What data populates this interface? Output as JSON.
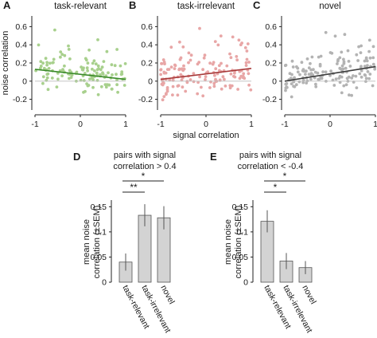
{
  "chart_data": [
    {
      "panel": "A",
      "type": "scatter",
      "title": "task-relevant",
      "xlabel": "",
      "ylabel": "noise correlation",
      "xlim": [
        -1,
        1
      ],
      "ylim": [
        -0.3,
        0.7
      ],
      "xticks": [
        "-1",
        "0",
        "1"
      ],
      "yticks": [
        "-0.2",
        "0",
        "0.2",
        "0.4",
        "0.6"
      ],
      "point_color": "#a8d08d",
      "line_color": "#3b8a2a",
      "fit_line": {
        "x": [
          -1,
          1
        ],
        "y": [
          0.13,
          0.02
        ]
      },
      "seed": 11,
      "n_points": 130,
      "spread": 0.15
    },
    {
      "panel": "B",
      "type": "scatter",
      "title": "task-irrelevant",
      "xlabel": "signal correlation",
      "ylabel": "",
      "xlim": [
        -1,
        1
      ],
      "ylim": [
        -0.3,
        0.7
      ],
      "xticks": [
        "-1",
        "0",
        "1"
      ],
      "yticks": [
        "-0.2",
        "0",
        "0.2",
        "0.4",
        "0.6"
      ],
      "point_color": "#e8a6a6",
      "line_color": "#a83a3a",
      "fit_line": {
        "x": [
          -1,
          1
        ],
        "y": [
          0.02,
          0.14
        ]
      },
      "seed": 23,
      "n_points": 150,
      "spread": 0.16
    },
    {
      "panel": "C",
      "type": "scatter",
      "title": "novel",
      "xlabel": "",
      "ylabel": "",
      "xlim": [
        -1,
        1
      ],
      "ylim": [
        -0.3,
        0.7
      ],
      "xticks": [
        "-1",
        "0",
        "1"
      ],
      "yticks": [
        "-0.2",
        "0",
        "0.2",
        "0.4",
        "0.6"
      ],
      "point_color": "#b3b3b3",
      "line_color": "#3c3c3c",
      "fit_line": {
        "x": [
          -1,
          1
        ],
        "y": [
          0.0,
          0.16
        ]
      },
      "seed": 37,
      "n_points": 150,
      "spread": 0.16
    },
    {
      "panel": "D",
      "type": "bar",
      "title": "pairs with signal\ncorrelation > 0.4",
      "ylabel": "mean noise\ncorrelation (±SEM)",
      "categories": [
        "task-relevant",
        "task-irrelevant",
        "novel"
      ],
      "values": [
        0.04,
        0.133,
        0.128
      ],
      "errors": [
        0.017,
        0.022,
        0.023
      ],
      "ylim": [
        0,
        0.16
      ],
      "yticks": [
        "0",
        "0.05",
        "0.1",
        "0.15"
      ],
      "bar_color": "#d3d3d3",
      "significance": [
        {
          "from": 0,
          "to": 2,
          "label": "*"
        },
        {
          "from": 0,
          "to": 1,
          "label": "**"
        }
      ]
    },
    {
      "panel": "E",
      "type": "bar",
      "title": "pairs with signal\ncorrelation < -0.4",
      "ylabel": "mean noise\ncorrelation (±SEM)",
      "categories": [
        "task-relevant",
        "task-irrelevant",
        "novel"
      ],
      "values": [
        0.121,
        0.042,
        0.029
      ],
      "errors": [
        0.022,
        0.016,
        0.013
      ],
      "ylim": [
        0,
        0.16
      ],
      "yticks": [
        "0",
        "0.05",
        "0.1",
        "0.15"
      ],
      "bar_color": "#d3d3d3",
      "significance": [
        {
          "from": 0,
          "to": 2,
          "label": "*"
        },
        {
          "from": 0,
          "to": 1,
          "label": "*"
        }
      ]
    }
  ]
}
